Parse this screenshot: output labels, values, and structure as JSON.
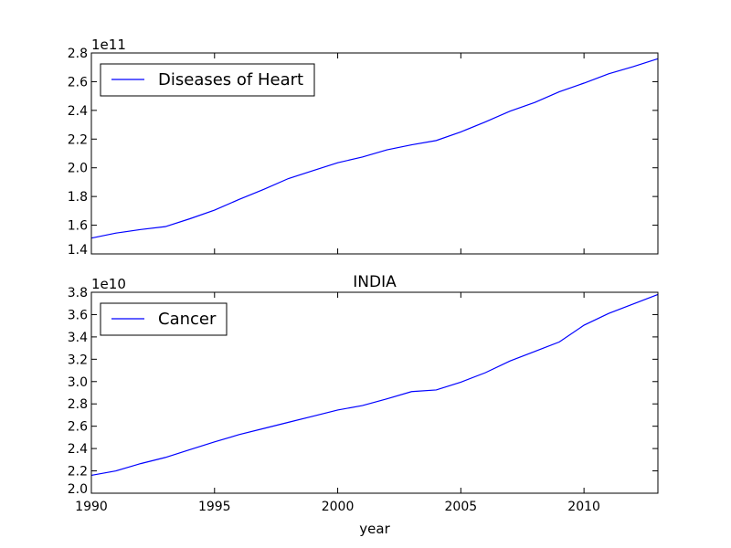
{
  "chart_data": [
    {
      "type": "line",
      "title": "",
      "xlabel": "",
      "ylabel": "",
      "offset_label": "1e11",
      "xlim": [
        1990,
        2013
      ],
      "ylim": [
        1.4,
        2.8
      ],
      "y_scale": 100000000000.0,
      "yticks": [
        1.4,
        1.6,
        1.8,
        2.0,
        2.2,
        2.4,
        2.6,
        2.8
      ],
      "ytick_labels": [
        "1.4",
        "1.6",
        "1.8",
        "2.0",
        "2.2",
        "2.4",
        "2.6",
        "2.8"
      ],
      "xticks": [
        1990,
        1995,
        2000,
        2005,
        2010
      ],
      "xtick_labels": [],
      "legend_position": "top-left",
      "grid": false,
      "series": [
        {
          "name": "Diseases of Heart",
          "color": "#0000ff",
          "x": [
            1990,
            1991,
            1992,
            1993,
            1994,
            1995,
            1996,
            1997,
            1998,
            1999,
            2000,
            2001,
            2002,
            2003,
            2004,
            2005,
            2006,
            2007,
            2008,
            2009,
            2010,
            2011,
            2012,
            2013
          ],
          "y": [
            1.51,
            1.545,
            1.57,
            1.59,
            1.645,
            1.705,
            1.78,
            1.85,
            1.925,
            1.98,
            2.035,
            2.075,
            2.125,
            2.16,
            2.19,
            2.25,
            2.32,
            2.395,
            2.455,
            2.53,
            2.59,
            2.655,
            2.705,
            2.76
          ]
        }
      ]
    },
    {
      "type": "line",
      "title": "INDIA",
      "xlabel": "year",
      "ylabel": "",
      "offset_label": "1e10",
      "xlim": [
        1990,
        2013
      ],
      "ylim": [
        2.0,
        3.8
      ],
      "y_scale": 10000000000.0,
      "yticks": [
        2.0,
        2.2,
        2.4,
        2.6,
        2.8,
        3.0,
        3.2,
        3.4,
        3.6,
        3.8
      ],
      "ytick_labels": [
        "2.0",
        "2.2",
        "2.4",
        "2.6",
        "2.8",
        "3.0",
        "3.2",
        "3.4",
        "3.6",
        "3.8"
      ],
      "xticks": [
        1990,
        1995,
        2000,
        2005,
        2010
      ],
      "xtick_labels": [
        "1990",
        "1995",
        "2000",
        "2005",
        "2010"
      ],
      "legend_position": "top-left",
      "grid": false,
      "series": [
        {
          "name": "Cancer",
          "color": "#0000ff",
          "x": [
            1990,
            1991,
            1992,
            1993,
            1994,
            1995,
            1996,
            1997,
            1998,
            1999,
            2000,
            2001,
            2002,
            2003,
            2004,
            2005,
            2006,
            2007,
            2008,
            2009,
            2010,
            2011,
            2012,
            2013
          ],
          "y": [
            2.16,
            2.2,
            2.265,
            2.32,
            2.39,
            2.46,
            2.525,
            2.58,
            2.635,
            2.69,
            2.745,
            2.785,
            2.845,
            2.91,
            2.925,
            2.995,
            3.08,
            3.185,
            3.27,
            3.355,
            3.505,
            3.61,
            3.695,
            3.78
          ]
        }
      ]
    }
  ]
}
